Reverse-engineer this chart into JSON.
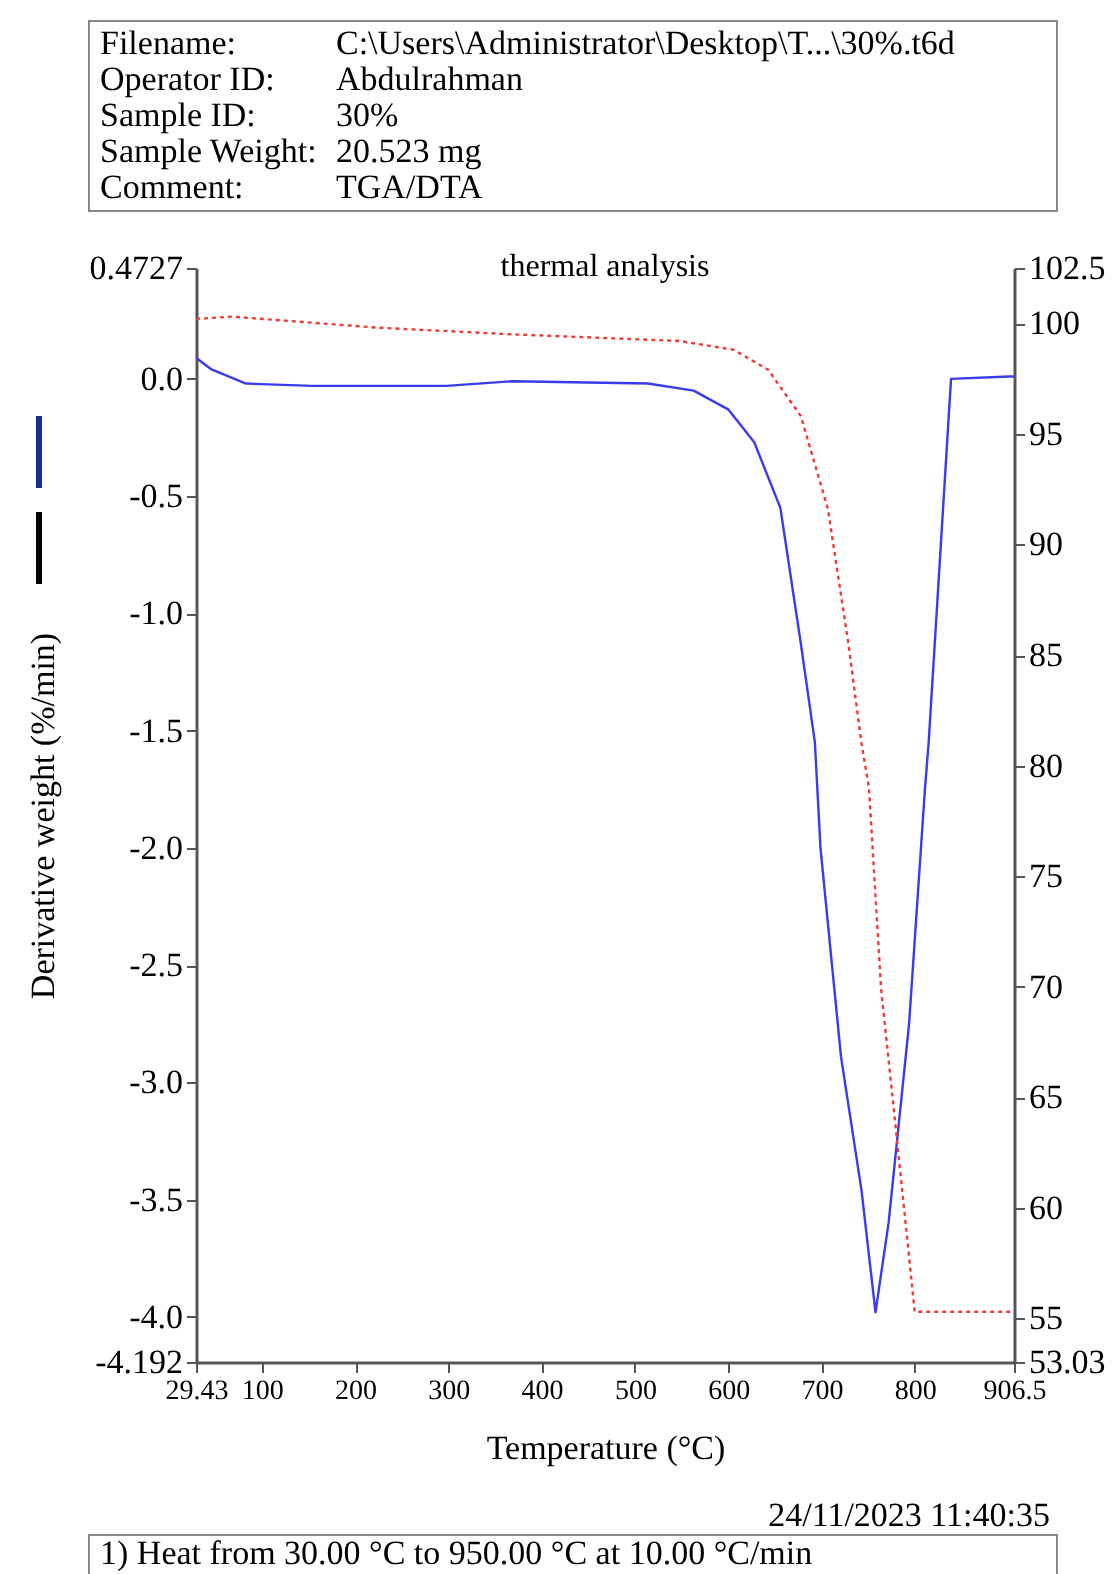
{
  "chart_data": {
    "type": "line",
    "title": "thermal analysis",
    "xlabel": "Temperature (°C)",
    "ylabel": "Derivative weight (%/min)",
    "annotations": [
      "Filename:",
      "C:\\Users\\Administrator\\Desktop\\T...\\30%.t6d",
      "Operator ID:",
      "Abdulrahman",
      "Sample ID:",
      "30%",
      "Sample Weight:",
      "20.523 mg",
      "Comment:",
      "TGA/DTA",
      "24/11/2023 11:40:35",
      "1) Heat from 30.00 °C to 950.00 °C at 10.00 °C/min"
    ],
    "xlim": [
      29.43,
      906.5
    ],
    "xticks": [
      29.43,
      100,
      200,
      300,
      400,
      500,
      600,
      700,
      800,
      906.5
    ],
    "ylim": [
      -4.192,
      0.4727
    ],
    "yticks": [
      0.4727,
      {
        "value": 0,
        "label": "0.0"
      },
      -0.5,
      {
        "value": -1,
        "label": "-1.0"
      },
      -1.5,
      {
        "value": -2,
        "label": "-2.0"
      },
      -2.5,
      {
        "value": -3,
        "label": "-3.0"
      },
      -3.5,
      {
        "value": -4,
        "label": "-4.0"
      },
      -4.192
    ],
    "y2lim": [
      53.03,
      102.5
    ],
    "y2ticks": [
      102.5,
      100,
      95,
      90,
      85,
      80,
      75,
      70,
      65,
      60,
      55,
      53.03
    ],
    "grid": false,
    "series": [
      {
        "color": "#3a3af0",
        "line_style": "solid",
        "x": [
          29.43,
          46,
          83,
          154,
          298,
          369,
          514,
          563,
          600,
          628,
          656,
          678,
          693,
          699,
          721,
          743,
          758,
          772,
          794,
          811,
          815,
          839,
          901,
          906.5
        ],
        "values": [
          0.09,
          0.04,
          -0.02,
          -0.03,
          -0.03,
          -0.01,
          -0.02,
          -0.05,
          -0.13,
          -0.27,
          -0.55,
          -1.13,
          -1.55,
          -2.0,
          -2.89,
          -3.46,
          -3.98,
          -3.6,
          -2.75,
          -1.75,
          -1.55,
          0.0,
          0.01,
          0.01
        ]
      },
      {
        "color": "#f03a3a",
        "line_style": "dotted",
        "axis": "y2",
        "x": [
          29.43,
          68,
          225,
          369,
          548,
          606,
          643,
          678,
          707,
          729,
          743,
          751,
          764,
          779,
          794,
          800,
          906.5
        ],
        "values": [
          100.2,
          100.3,
          99.8,
          99.5,
          99.2,
          98.8,
          97.9,
          95.8,
          91.6,
          85.5,
          81.0,
          79.0,
          69.9,
          63.9,
          57.8,
          55.3,
          55.3
        ]
      }
    ]
  }
}
